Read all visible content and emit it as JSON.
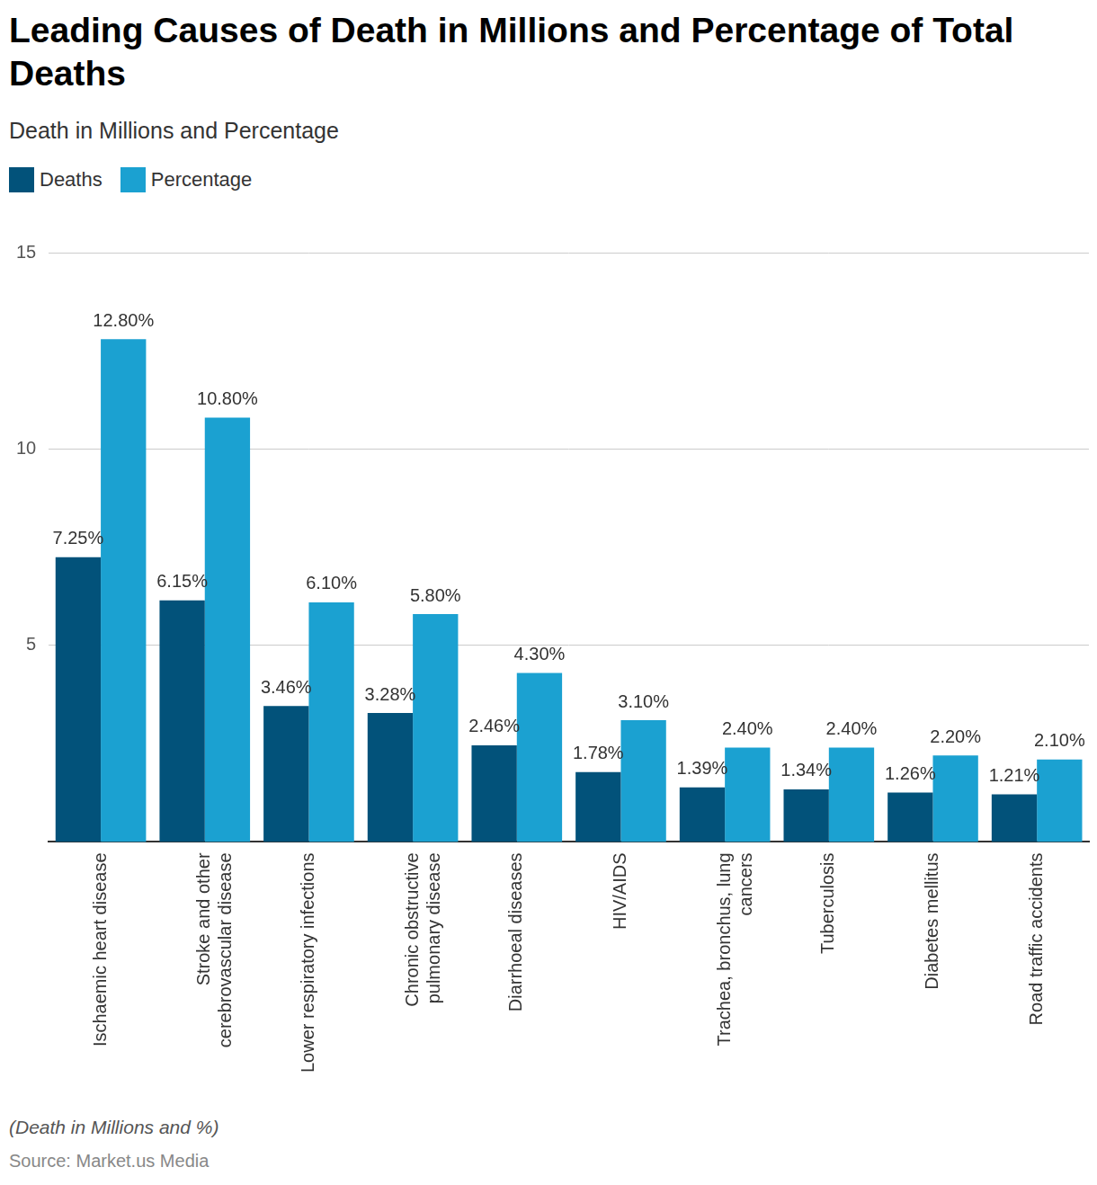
{
  "chart_data": {
    "type": "bar",
    "title": "Leading Causes of Death in Millions and Percentage of Total Deaths",
    "subtitle": "Death in Millions and Percentage",
    "note": "(Death in Millions and %)",
    "source": "Source: Market.us Media",
    "categories": [
      "Ischaemic heart disease",
      "Stroke and other cerebrovascular disease",
      "Lower respiratory infections",
      "Chronic obstructive pulmonary disease",
      "Diarrhoeal diseases",
      "HIV/AIDS",
      "Trachea, bronchus, lung cancers",
      "Tuberculosis",
      "Diabetes mellitus",
      "Road traffic accidents"
    ],
    "series": [
      {
        "name": "Deaths",
        "color": "#02527a",
        "values": [
          7.25,
          6.15,
          3.46,
          3.28,
          2.46,
          1.78,
          1.39,
          1.34,
          1.26,
          1.21
        ],
        "value_labels": [
          "7.25%",
          "6.15%",
          "3.46%",
          "3.28%",
          "2.46%",
          "1.78%",
          "1.39%",
          "1.34%",
          "1.26%",
          "1.21%"
        ]
      },
      {
        "name": "Percentage",
        "color": "#1ba1d1",
        "values": [
          12.8,
          10.8,
          6.1,
          5.8,
          4.3,
          3.1,
          2.4,
          2.4,
          2.2,
          2.1
        ],
        "value_labels": [
          "12.80%",
          "10.80%",
          "6.10%",
          "5.80%",
          "4.30%",
          "3.10%",
          "2.40%",
          "2.40%",
          "2.20%",
          "2.10%"
        ]
      }
    ],
    "ylim": [
      0,
      15
    ],
    "yticks": [
      5,
      10,
      15
    ],
    "grid": true,
    "legend": "top left",
    "data_labels": true
  }
}
